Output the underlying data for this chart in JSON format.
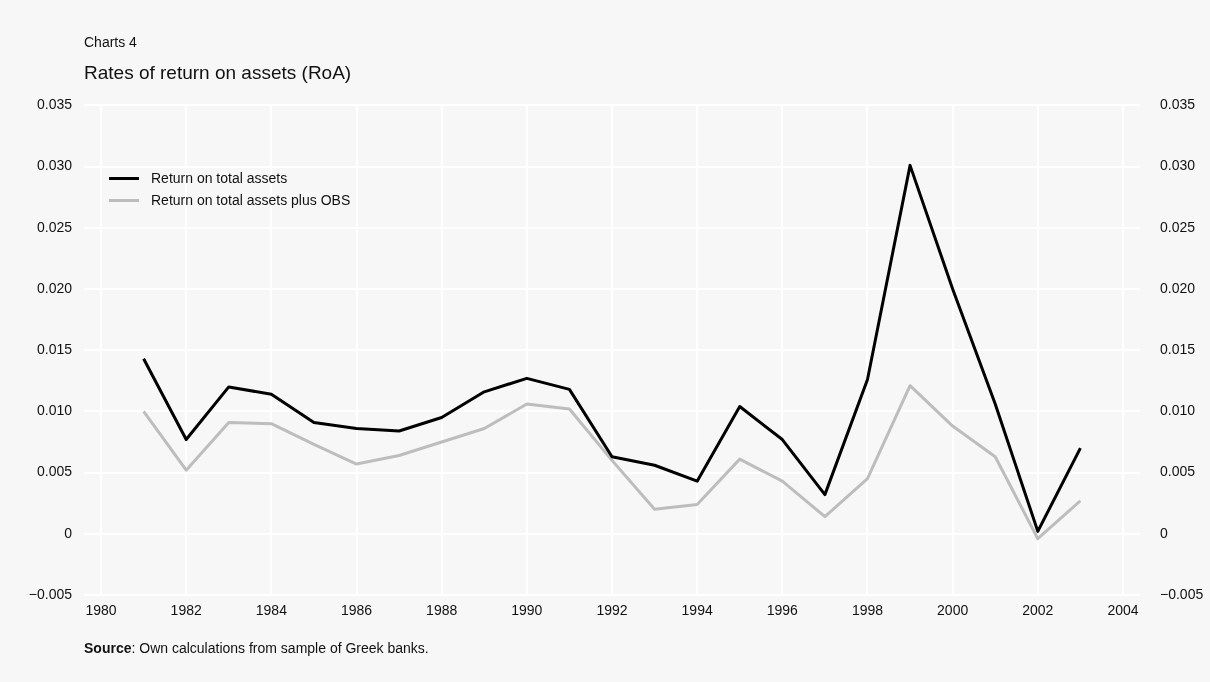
{
  "chart_data": {
    "type": "line",
    "subtitle": "Charts 4",
    "title": "Rates of return on assets (RoA)",
    "x": [
      1981,
      1982,
      1983,
      1984,
      1985,
      1986,
      1987,
      1988,
      1989,
      1990,
      1991,
      1992,
      1993,
      1994,
      1995,
      1996,
      1997,
      1998,
      1999,
      2000,
      2001,
      2002,
      2003
    ],
    "series": [
      {
        "name": "Return on total assets",
        "color": "#000000",
        "values": [
          0.0143,
          0.0077,
          0.012,
          0.0114,
          0.0091,
          0.0086,
          0.0084,
          0.0095,
          0.0116,
          0.0127,
          0.0118,
          0.0063,
          0.0056,
          0.0043,
          0.0104,
          0.0077,
          0.0032,
          0.0126,
          0.0301,
          0.02,
          0.0106,
          0.0002,
          0.007
        ]
      },
      {
        "name": "Return on total assets plus OBS",
        "color": "#bdbdbd",
        "values": [
          0.01,
          0.0052,
          0.0091,
          0.009,
          0.0073,
          0.0057,
          0.0064,
          0.0075,
          0.0086,
          0.0106,
          0.0102,
          0.006,
          0.002,
          0.0024,
          0.0061,
          0.0043,
          0.0014,
          0.0045,
          0.0121,
          0.0088,
          0.0063,
          -0.0004,
          0.0027
        ]
      }
    ],
    "xlim": [
      1979.6,
      2004.4
    ],
    "xticks": [
      1980,
      1982,
      1984,
      1986,
      1988,
      1990,
      1992,
      1994,
      1996,
      1998,
      2000,
      2002,
      2004
    ],
    "ylim": [
      -0.005,
      0.035
    ],
    "yticks": [
      {
        "value": -0.005,
        "label": "−0.005"
      },
      0,
      0.005,
      {
        "value": 0.01,
        "label": "0.010"
      },
      0.015,
      {
        "value": 0.02,
        "label": "0.020"
      },
      0.025,
      {
        "value": 0.03,
        "label": "0.030"
      },
      0.035
    ],
    "y2lim": [
      -0.005,
      0.035
    ],
    "y2ticks": [
      {
        "value": -0.005,
        "label": "−0.005"
      },
      0,
      0.005,
      {
        "value": 0.01,
        "label": "0.010"
      },
      0.015,
      {
        "value": 0.02,
        "label": "0.020"
      },
      0.025,
      {
        "value": 0.03,
        "label": "0.030"
      },
      0.035
    ],
    "grid": true,
    "legend": "top left",
    "marker": "none",
    "line_style": "solid",
    "annotations": [
      "Source: Own calculations from sample of Greek banks."
    ]
  }
}
